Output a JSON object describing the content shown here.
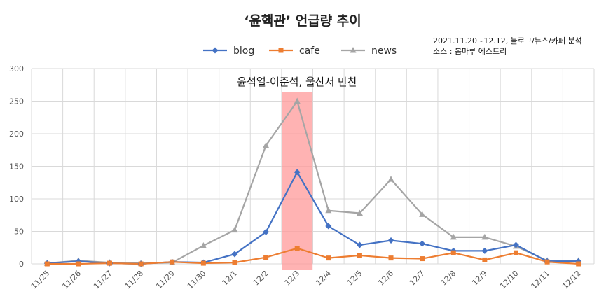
{
  "chart_data": {
    "type": "line",
    "title": "‘윤핵관’ 언급량 추이",
    "note_lines": [
      "2021.11.20~12.12, 블로그/뉴스/카페 분석",
      "소스 : 봄마루 에스트리"
    ],
    "categories": [
      "11/25",
      "11/26",
      "11/27",
      "11/28",
      "11/29",
      "11/30",
      "12/1",
      "12/2",
      "12/3",
      "12/4",
      "12/5",
      "12/6",
      "12/7",
      "12/8",
      "12/9",
      "12/10",
      "12/11",
      "12/12"
    ],
    "series": [
      {
        "name": "blog",
        "color": "#4472c4",
        "marker": "diamond",
        "values": [
          1,
          4,
          1,
          0,
          3,
          2,
          15,
          49,
          141,
          58,
          29,
          36,
          31,
          20,
          20,
          29,
          4,
          4
        ]
      },
      {
        "name": "cafe",
        "color": "#ed7d31",
        "marker": "square",
        "values": [
          0,
          0,
          1,
          0,
          3,
          1,
          2,
          10,
          24,
          9,
          13,
          9,
          8,
          17,
          6,
          17,
          3,
          0
        ]
      },
      {
        "name": "news",
        "color": "#a5a5a5",
        "marker": "triangle",
        "values": [
          1,
          5,
          2,
          1,
          2,
          28,
          52,
          182,
          250,
          82,
          78,
          130,
          76,
          41,
          41,
          27,
          5,
          5
        ]
      }
    ],
    "ylim": [
      0,
      300
    ],
    "yticks": [
      0,
      50,
      100,
      150,
      200,
      250,
      300
    ],
    "grid": true,
    "legend": "top-center",
    "annotation": {
      "text": "윤석열-이준석, 울산서 만찬",
      "category": "12/3",
      "color": "#ff9999"
    }
  }
}
